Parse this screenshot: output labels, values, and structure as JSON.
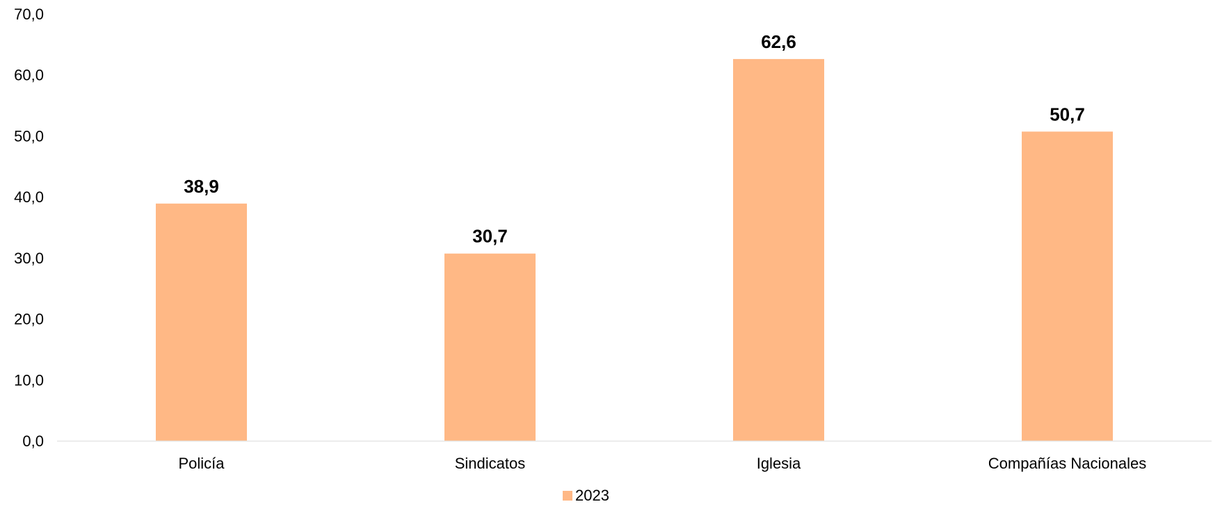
{
  "chart_data": {
    "type": "bar",
    "categories": [
      "Policía",
      "Sindicatos",
      "Iglesia",
      "Compañías Nacionales"
    ],
    "series": [
      {
        "name": "2023",
        "values": [
          38.9,
          30.7,
          62.6,
          50.7
        ],
        "value_labels": [
          "38,9",
          "30,7",
          "62,6",
          "50,7"
        ],
        "color": "#FFB885"
      }
    ],
    "title": "",
    "xlabel": "",
    "ylabel": "",
    "ylim": [
      0,
      70
    ],
    "yticks": [
      0,
      10,
      20,
      30,
      40,
      50,
      60,
      70
    ],
    "ytick_labels": [
      "0,0",
      "10,0",
      "20,0",
      "30,0",
      "40,0",
      "50,0",
      "60,0",
      "70,0"
    ],
    "grid": false,
    "legend": "bottom-center",
    "axis_color": "#E6E6E6"
  }
}
